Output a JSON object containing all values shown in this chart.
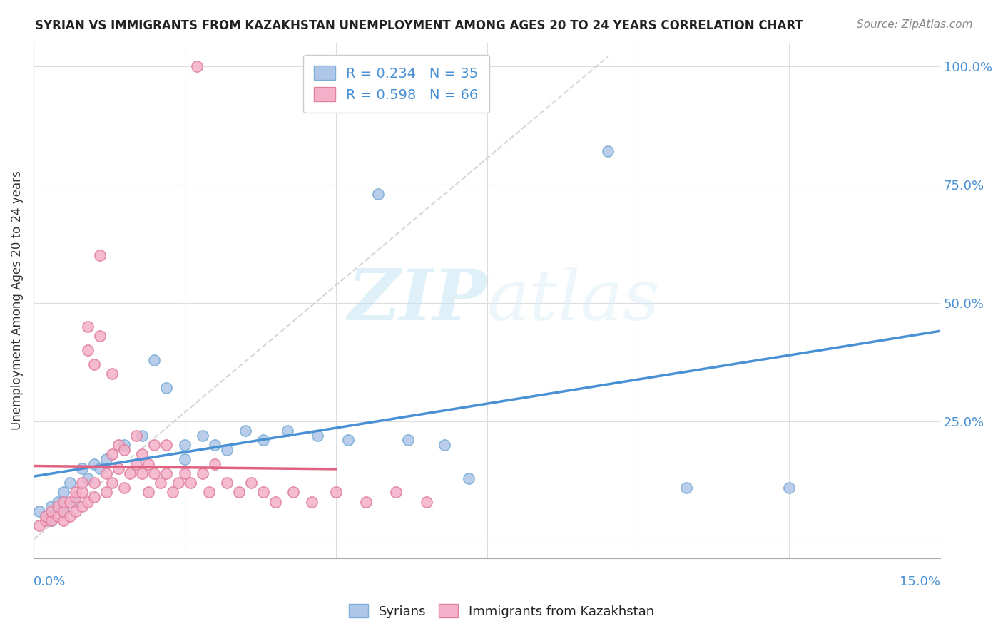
{
  "title": "SYRIAN VS IMMIGRANTS FROM KAZAKHSTAN UNEMPLOYMENT AMONG AGES 20 TO 24 YEARS CORRELATION CHART",
  "source": "Source: ZipAtlas.com",
  "ylabel": "Unemployment Among Ages 20 to 24 years",
  "watermark_zip": "ZIP",
  "watermark_atlas": "atlas",
  "xmin": 0.0,
  "xmax": 0.15,
  "ymin": -0.04,
  "ymax": 1.05,
  "blue_face": "#aec6e8",
  "blue_edge": "#7baed6",
  "pink_face": "#f4b0c8",
  "pink_edge": "#e080a0",
  "blue_line": "#4a90d4",
  "pink_line": "#e06080",
  "ref_line_color": "#cccccc",
  "R_syrians": 0.234,
  "N_syrians": 35,
  "R_kaz": 0.598,
  "N_kaz": 66,
  "syrians_x": [
    0.001,
    0.002,
    0.003,
    0.003,
    0.004,
    0.005,
    0.005,
    0.006,
    0.007,
    0.008,
    0.009,
    0.01,
    0.011,
    0.012,
    0.015,
    0.018,
    0.02,
    0.022,
    0.025,
    0.025,
    0.028,
    0.03,
    0.032,
    0.035,
    0.038,
    0.042,
    0.047,
    0.052,
    0.057,
    0.062,
    0.068,
    0.072,
    0.095,
    0.108,
    0.125
  ],
  "syrians_y": [
    0.06,
    0.05,
    0.07,
    0.04,
    0.08,
    0.06,
    0.1,
    0.12,
    0.08,
    0.15,
    0.13,
    0.16,
    0.15,
    0.17,
    0.2,
    0.22,
    0.38,
    0.32,
    0.17,
    0.2,
    0.22,
    0.2,
    0.19,
    0.23,
    0.21,
    0.23,
    0.22,
    0.21,
    0.73,
    0.21,
    0.2,
    0.13,
    0.82,
    0.11,
    0.11
  ],
  "kaz_x": [
    0.027,
    0.001,
    0.002,
    0.002,
    0.003,
    0.003,
    0.004,
    0.004,
    0.005,
    0.005,
    0.005,
    0.006,
    0.006,
    0.007,
    0.007,
    0.007,
    0.008,
    0.008,
    0.008,
    0.009,
    0.009,
    0.009,
    0.01,
    0.01,
    0.01,
    0.011,
    0.011,
    0.012,
    0.012,
    0.013,
    0.013,
    0.013,
    0.014,
    0.014,
    0.015,
    0.015,
    0.016,
    0.017,
    0.017,
    0.018,
    0.018,
    0.019,
    0.019,
    0.02,
    0.02,
    0.021,
    0.022,
    0.022,
    0.023,
    0.024,
    0.025,
    0.026,
    0.028,
    0.029,
    0.03,
    0.032,
    0.034,
    0.036,
    0.038,
    0.04,
    0.043,
    0.046,
    0.05,
    0.055,
    0.06,
    0.065
  ],
  "kaz_y": [
    1.0,
    0.03,
    0.04,
    0.05,
    0.04,
    0.06,
    0.05,
    0.07,
    0.04,
    0.06,
    0.08,
    0.05,
    0.08,
    0.06,
    0.09,
    0.1,
    0.07,
    0.1,
    0.12,
    0.08,
    0.4,
    0.45,
    0.09,
    0.12,
    0.37,
    0.6,
    0.43,
    0.1,
    0.14,
    0.12,
    0.18,
    0.35,
    0.15,
    0.2,
    0.11,
    0.19,
    0.14,
    0.16,
    0.22,
    0.14,
    0.18,
    0.1,
    0.16,
    0.2,
    0.14,
    0.12,
    0.14,
    0.2,
    0.1,
    0.12,
    0.14,
    0.12,
    0.14,
    0.1,
    0.16,
    0.12,
    0.1,
    0.12,
    0.1,
    0.08,
    0.1,
    0.08,
    0.1,
    0.08,
    0.1,
    0.08
  ],
  "yticks": [
    0.0,
    0.25,
    0.5,
    0.75,
    1.0
  ],
  "ytick_labels": [
    "",
    "25.0%",
    "50.0%",
    "75.0%",
    "100.0%"
  ],
  "xticks": [
    0.0,
    0.025,
    0.05,
    0.075,
    0.1,
    0.125,
    0.15
  ],
  "title_fontsize": 12,
  "source_fontsize": 11,
  "tick_fontsize": 13,
  "ylabel_fontsize": 12,
  "legend_fontsize": 14,
  "scatter_size": 120,
  "scatter_alpha": 0.85,
  "scatter_lw": 1.2
}
